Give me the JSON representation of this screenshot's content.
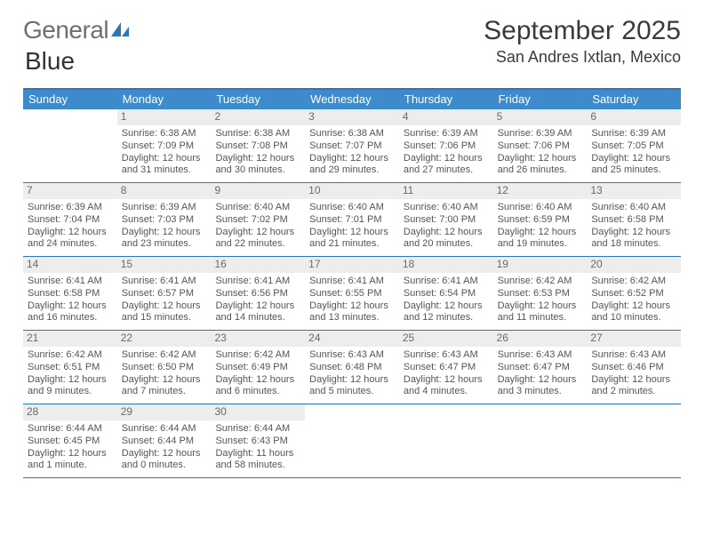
{
  "logo": {
    "part1": "General",
    "part2": "Blue"
  },
  "title": "September 2025",
  "subtitle": "San Andres Ixtlan, Mexico",
  "dow_bg": "#3d8bca",
  "dow_fg": "#ffffff",
  "border_color": "#2f76b8",
  "daynum_bg": "#ededed",
  "days_of_week": [
    "Sunday",
    "Monday",
    "Tuesday",
    "Wednesday",
    "Thursday",
    "Friday",
    "Saturday"
  ],
  "weeks": [
    [
      {
        "n": "",
        "sunrise": "",
        "sunset": "",
        "daylight": ""
      },
      {
        "n": "1",
        "sunrise": "Sunrise: 6:38 AM",
        "sunset": "Sunset: 7:09 PM",
        "daylight": "Daylight: 12 hours and 31 minutes."
      },
      {
        "n": "2",
        "sunrise": "Sunrise: 6:38 AM",
        "sunset": "Sunset: 7:08 PM",
        "daylight": "Daylight: 12 hours and 30 minutes."
      },
      {
        "n": "3",
        "sunrise": "Sunrise: 6:38 AM",
        "sunset": "Sunset: 7:07 PM",
        "daylight": "Daylight: 12 hours and 29 minutes."
      },
      {
        "n": "4",
        "sunrise": "Sunrise: 6:39 AM",
        "sunset": "Sunset: 7:06 PM",
        "daylight": "Daylight: 12 hours and 27 minutes."
      },
      {
        "n": "5",
        "sunrise": "Sunrise: 6:39 AM",
        "sunset": "Sunset: 7:06 PM",
        "daylight": "Daylight: 12 hours and 26 minutes."
      },
      {
        "n": "6",
        "sunrise": "Sunrise: 6:39 AM",
        "sunset": "Sunset: 7:05 PM",
        "daylight": "Daylight: 12 hours and 25 minutes."
      }
    ],
    [
      {
        "n": "7",
        "sunrise": "Sunrise: 6:39 AM",
        "sunset": "Sunset: 7:04 PM",
        "daylight": "Daylight: 12 hours and 24 minutes."
      },
      {
        "n": "8",
        "sunrise": "Sunrise: 6:39 AM",
        "sunset": "Sunset: 7:03 PM",
        "daylight": "Daylight: 12 hours and 23 minutes."
      },
      {
        "n": "9",
        "sunrise": "Sunrise: 6:40 AM",
        "sunset": "Sunset: 7:02 PM",
        "daylight": "Daylight: 12 hours and 22 minutes."
      },
      {
        "n": "10",
        "sunrise": "Sunrise: 6:40 AM",
        "sunset": "Sunset: 7:01 PM",
        "daylight": "Daylight: 12 hours and 21 minutes."
      },
      {
        "n": "11",
        "sunrise": "Sunrise: 6:40 AM",
        "sunset": "Sunset: 7:00 PM",
        "daylight": "Daylight: 12 hours and 20 minutes."
      },
      {
        "n": "12",
        "sunrise": "Sunrise: 6:40 AM",
        "sunset": "Sunset: 6:59 PM",
        "daylight": "Daylight: 12 hours and 19 minutes."
      },
      {
        "n": "13",
        "sunrise": "Sunrise: 6:40 AM",
        "sunset": "Sunset: 6:58 PM",
        "daylight": "Daylight: 12 hours and 18 minutes."
      }
    ],
    [
      {
        "n": "14",
        "sunrise": "Sunrise: 6:41 AM",
        "sunset": "Sunset: 6:58 PM",
        "daylight": "Daylight: 12 hours and 16 minutes."
      },
      {
        "n": "15",
        "sunrise": "Sunrise: 6:41 AM",
        "sunset": "Sunset: 6:57 PM",
        "daylight": "Daylight: 12 hours and 15 minutes."
      },
      {
        "n": "16",
        "sunrise": "Sunrise: 6:41 AM",
        "sunset": "Sunset: 6:56 PM",
        "daylight": "Daylight: 12 hours and 14 minutes."
      },
      {
        "n": "17",
        "sunrise": "Sunrise: 6:41 AM",
        "sunset": "Sunset: 6:55 PM",
        "daylight": "Daylight: 12 hours and 13 minutes."
      },
      {
        "n": "18",
        "sunrise": "Sunrise: 6:41 AM",
        "sunset": "Sunset: 6:54 PM",
        "daylight": "Daylight: 12 hours and 12 minutes."
      },
      {
        "n": "19",
        "sunrise": "Sunrise: 6:42 AM",
        "sunset": "Sunset: 6:53 PM",
        "daylight": "Daylight: 12 hours and 11 minutes."
      },
      {
        "n": "20",
        "sunrise": "Sunrise: 6:42 AM",
        "sunset": "Sunset: 6:52 PM",
        "daylight": "Daylight: 12 hours and 10 minutes."
      }
    ],
    [
      {
        "n": "21",
        "sunrise": "Sunrise: 6:42 AM",
        "sunset": "Sunset: 6:51 PM",
        "daylight": "Daylight: 12 hours and 9 minutes."
      },
      {
        "n": "22",
        "sunrise": "Sunrise: 6:42 AM",
        "sunset": "Sunset: 6:50 PM",
        "daylight": "Daylight: 12 hours and 7 minutes."
      },
      {
        "n": "23",
        "sunrise": "Sunrise: 6:42 AM",
        "sunset": "Sunset: 6:49 PM",
        "daylight": "Daylight: 12 hours and 6 minutes."
      },
      {
        "n": "24",
        "sunrise": "Sunrise: 6:43 AM",
        "sunset": "Sunset: 6:48 PM",
        "daylight": "Daylight: 12 hours and 5 minutes."
      },
      {
        "n": "25",
        "sunrise": "Sunrise: 6:43 AM",
        "sunset": "Sunset: 6:47 PM",
        "daylight": "Daylight: 12 hours and 4 minutes."
      },
      {
        "n": "26",
        "sunrise": "Sunrise: 6:43 AM",
        "sunset": "Sunset: 6:47 PM",
        "daylight": "Daylight: 12 hours and 3 minutes."
      },
      {
        "n": "27",
        "sunrise": "Sunrise: 6:43 AM",
        "sunset": "Sunset: 6:46 PM",
        "daylight": "Daylight: 12 hours and 2 minutes."
      }
    ],
    [
      {
        "n": "28",
        "sunrise": "Sunrise: 6:44 AM",
        "sunset": "Sunset: 6:45 PM",
        "daylight": "Daylight: 12 hours and 1 minute."
      },
      {
        "n": "29",
        "sunrise": "Sunrise: 6:44 AM",
        "sunset": "Sunset: 6:44 PM",
        "daylight": "Daylight: 12 hours and 0 minutes."
      },
      {
        "n": "30",
        "sunrise": "Sunrise: 6:44 AM",
        "sunset": "Sunset: 6:43 PM",
        "daylight": "Daylight: 11 hours and 58 minutes."
      },
      {
        "n": "",
        "sunrise": "",
        "sunset": "",
        "daylight": ""
      },
      {
        "n": "",
        "sunrise": "",
        "sunset": "",
        "daylight": ""
      },
      {
        "n": "",
        "sunrise": "",
        "sunset": "",
        "daylight": ""
      },
      {
        "n": "",
        "sunrise": "",
        "sunset": "",
        "daylight": ""
      }
    ]
  ]
}
